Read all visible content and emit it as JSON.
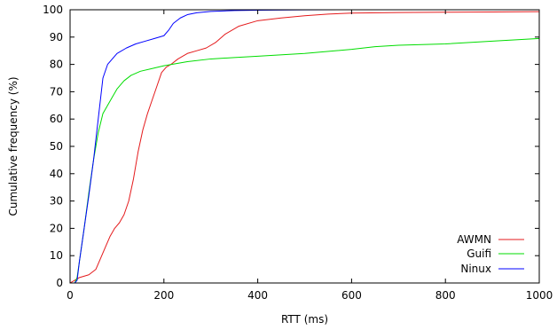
{
  "chart_data": {
    "type": "line",
    "title": "",
    "xlabel": "RTT (ms)",
    "ylabel": "Cumulative frequency (%)",
    "xlim": [
      0,
      1000
    ],
    "ylim": [
      0,
      100
    ],
    "xticks": [
      0,
      200,
      400,
      600,
      800,
      1000
    ],
    "yticks": [
      0,
      10,
      20,
      30,
      40,
      50,
      60,
      70,
      80,
      90,
      100
    ],
    "grid": false,
    "legend_position": "bottom-right",
    "series": [
      {
        "name": "AWMN",
        "color": "#e41a1c",
        "x": [
          0,
          10,
          20,
          40,
          55,
          65,
          75,
          85,
          95,
          105,
          115,
          125,
          135,
          145,
          155,
          165,
          175,
          185,
          195,
          205,
          215,
          230,
          250,
          270,
          290,
          310,
          330,
          360,
          400,
          450,
          500,
          550,
          600,
          700,
          800,
          900,
          1000
        ],
        "y": [
          0,
          1,
          2,
          3,
          5,
          9,
          13,
          17,
          20,
          22,
          25,
          30,
          38,
          48,
          56,
          62,
          67,
          72,
          77,
          79,
          80,
          82,
          84,
          85,
          86,
          88,
          91,
          94,
          96,
          97,
          97.8,
          98.4,
          98.8,
          99.0,
          99.1,
          99.2,
          99.3
        ]
      },
      {
        "name": "Guifi",
        "color": "#00dd00",
        "x": [
          0,
          10,
          15,
          20,
          30,
          40,
          50,
          60,
          70,
          80,
          90,
          100,
          115,
          130,
          150,
          175,
          200,
          250,
          300,
          350,
          400,
          500,
          600,
          650,
          700,
          800,
          900,
          1000
        ],
        "y": [
          0,
          0,
          2,
          8,
          20,
          33,
          45,
          55,
          62,
          65,
          68,
          71,
          74,
          76,
          77.5,
          78.5,
          79.5,
          81,
          82,
          82.5,
          83,
          84,
          85.5,
          86.5,
          87,
          87.5,
          88.5,
          89.5
        ]
      },
      {
        "name": "Ninux",
        "color": "#0000ff",
        "x": [
          0,
          10,
          15,
          20,
          30,
          40,
          50,
          60,
          70,
          80,
          90,
          100,
          120,
          140,
          160,
          180,
          200,
          210,
          220,
          235,
          250,
          270,
          300,
          350,
          400,
          500,
          600,
          800,
          1000
        ],
        "y": [
          0,
          0,
          1,
          8,
          20,
          32,
          45,
          60,
          75,
          80,
          82,
          84,
          86,
          87.5,
          88.5,
          89.5,
          90.5,
          92.5,
          95,
          97,
          98.2,
          98.9,
          99.4,
          99.7,
          99.85,
          99.95,
          100,
          100,
          100
        ]
      }
    ]
  }
}
